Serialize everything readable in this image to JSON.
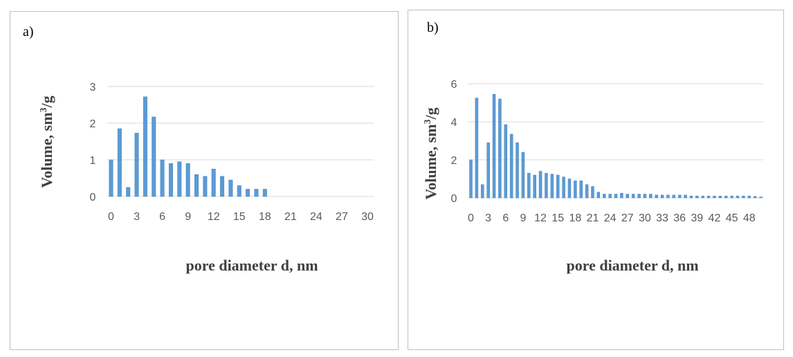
{
  "colors": {
    "bar": "#5b9bd5",
    "bar_edge": "#4a86bd",
    "grid": "#d9d9d9",
    "tick_text": "#595959",
    "title_text": "#404040"
  },
  "panels": [
    {
      "label": "a)"
    },
    {
      "label": "b)"
    }
  ],
  "chart_data": [
    {
      "type": "bar",
      "xlabel": "pore diameter d, nm",
      "ylabel": "Volume, sm3/g",
      "ylabel_main": "Volume, sm",
      "ylabel_sup": "3",
      "ylabel_tail": "/g",
      "ylim": [
        0,
        3
      ],
      "yticks": [
        "0",
        "1",
        "2",
        "3"
      ],
      "xlim": [
        0,
        30
      ],
      "xticks": [
        "0",
        "3",
        "6",
        "9",
        "12",
        "15",
        "18",
        "21",
        "24",
        "27",
        "30"
      ],
      "grid": true,
      "x": [
        0,
        1,
        2,
        3,
        4,
        5,
        6,
        7,
        8,
        9,
        10,
        11,
        12,
        13,
        14,
        15,
        16,
        17,
        18
      ],
      "values": [
        1.0,
        1.85,
        0.25,
        1.73,
        2.72,
        2.17,
        1.0,
        0.9,
        0.95,
        0.9,
        0.6,
        0.55,
        0.75,
        0.55,
        0.45,
        0.3,
        0.2,
        0.2,
        0.2
      ]
    },
    {
      "type": "bar",
      "xlabel": "pore diameter d, nm",
      "ylabel": "Volume, sm3/g",
      "ylabel_main": "Volume, sm",
      "ylabel_sup": "3",
      "ylabel_tail": "/g",
      "ylim": [
        0,
        6
      ],
      "yticks": [
        "0",
        "2",
        "4",
        "6"
      ],
      "xticks": [
        "0",
        "3",
        "6",
        "9",
        "12",
        "15",
        "18",
        "21",
        "24",
        "27",
        "30",
        "33",
        "36",
        "39",
        "42",
        "45",
        "48"
      ],
      "grid": true,
      "x": [
        0,
        1,
        2,
        3,
        4,
        5,
        6,
        7,
        8,
        9,
        10,
        11,
        12,
        13,
        14,
        15,
        16,
        17,
        18,
        19,
        20,
        21,
        22,
        23,
        24,
        25,
        26,
        27,
        28,
        29,
        30,
        31,
        32,
        33,
        34,
        35,
        36,
        37,
        38,
        39,
        40,
        41,
        42,
        43,
        44,
        45,
        46,
        47,
        48,
        49,
        50
      ],
      "values": [
        2.0,
        5.25,
        0.7,
        2.9,
        5.45,
        5.2,
        3.85,
        3.35,
        2.9,
        2.4,
        1.3,
        1.2,
        1.4,
        1.3,
        1.25,
        1.2,
        1.1,
        1.0,
        0.9,
        0.9,
        0.7,
        0.6,
        0.3,
        0.2,
        0.2,
        0.2,
        0.25,
        0.2,
        0.2,
        0.2,
        0.2,
        0.2,
        0.15,
        0.15,
        0.15,
        0.15,
        0.15,
        0.15,
        0.1,
        0.1,
        0.1,
        0.1,
        0.1,
        0.1,
        0.1,
        0.1,
        0.1,
        0.1,
        0.1,
        0.08,
        0.05
      ]
    }
  ]
}
